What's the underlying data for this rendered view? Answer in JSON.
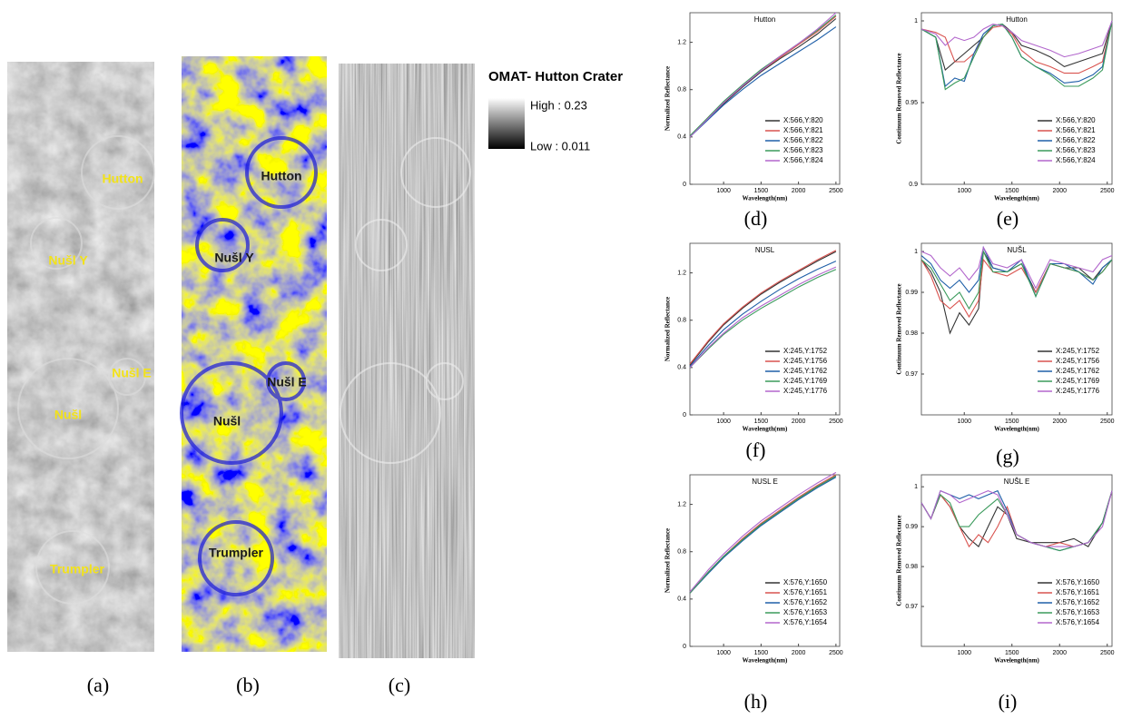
{
  "images": [
    {
      "caption": "(a)",
      "annotations": [
        "Hutton",
        "Nušl Y",
        "Nušl E",
        "Nušl",
        "Trumpler"
      ]
    },
    {
      "caption": "(b)",
      "annotations": [
        "Hutton",
        "Nušl Y",
        "Nušl E",
        "Nušl",
        "Trumpler"
      ]
    },
    {
      "caption": "(c)"
    }
  ],
  "omat_legend": {
    "title": "OMAT- Hutton Crater",
    "high": "High : 0.23",
    "low": "Low : 0.011"
  },
  "chart_data": [
    {
      "type": "line",
      "caption": "(d)",
      "title": "Hutton",
      "xlabel": "Wavelength(nm)",
      "ylabel": "Normalized Reflectance",
      "x": [
        550,
        800,
        1000,
        1250,
        1500,
        1750,
        2000,
        2250,
        2500
      ],
      "xlim": [
        550,
        2550
      ],
      "xticks": [
        1000,
        1500,
        2000,
        2500
      ],
      "ylim": [
        0,
        1.45
      ],
      "yticks": [
        0,
        0.4,
        0.8,
        1.2
      ],
      "series": [
        {
          "name": "X:566,Y:820",
          "color": "#333333",
          "values": [
            0.4,
            0.56,
            0.68,
            0.82,
            0.95,
            1.06,
            1.16,
            1.27,
            1.4
          ]
        },
        {
          "name": "X:566,Y:821",
          "color": "#d9534f",
          "values": [
            0.4,
            0.57,
            0.69,
            0.83,
            0.96,
            1.07,
            1.18,
            1.29,
            1.42
          ]
        },
        {
          "name": "X:566,Y:822",
          "color": "#1f5fa8",
          "values": [
            0.4,
            0.55,
            0.67,
            0.8,
            0.92,
            1.02,
            1.12,
            1.22,
            1.33
          ]
        },
        {
          "name": "X:566,Y:823",
          "color": "#3a9a5b",
          "values": [
            0.41,
            0.57,
            0.7,
            0.84,
            0.97,
            1.08,
            1.19,
            1.3,
            1.43
          ]
        },
        {
          "name": "X:566,Y:824",
          "color": "#b266cc",
          "values": [
            0.4,
            0.56,
            0.69,
            0.83,
            0.96,
            1.08,
            1.19,
            1.31,
            1.45
          ]
        }
      ]
    },
    {
      "type": "line",
      "caption": "(e)",
      "title": "Hutton",
      "xlabel": "Wavelength(nm)",
      "ylabel": "Continuum Removed Reflectance",
      "x": [
        550,
        700,
        800,
        900,
        1000,
        1100,
        1200,
        1300,
        1400,
        1500,
        1600,
        1750,
        1900,
        2050,
        2200,
        2350,
        2450,
        2550
      ],
      "xlim": [
        550,
        2550
      ],
      "xticks": [
        1000,
        1500,
        2000,
        2500
      ],
      "ylim": [
        0.9,
        1.005
      ],
      "yticks": [
        0.9,
        0.95,
        1
      ],
      "series": [
        {
          "name": "X:566,Y:820",
          "color": "#333333",
          "values": [
            0.995,
            0.99,
            0.97,
            0.975,
            0.98,
            0.985,
            0.99,
            0.997,
            0.998,
            0.993,
            0.985,
            0.982,
            0.978,
            0.972,
            0.975,
            0.978,
            0.98,
            1.0
          ]
        },
        {
          "name": "X:566,Y:821",
          "color": "#d9534f",
          "values": [
            0.995,
            0.993,
            0.99,
            0.975,
            0.975,
            0.98,
            0.99,
            0.996,
            0.997,
            0.992,
            0.982,
            0.975,
            0.972,
            0.968,
            0.968,
            0.972,
            0.975,
            1.0
          ]
        },
        {
          "name": "X:566,Y:822",
          "color": "#1f5fa8",
          "values": [
            0.995,
            0.99,
            0.96,
            0.965,
            0.963,
            0.98,
            0.992,
            0.997,
            0.998,
            0.99,
            0.978,
            0.972,
            0.968,
            0.962,
            0.963,
            0.967,
            0.972,
            1.0
          ]
        },
        {
          "name": "X:566,Y:823",
          "color": "#3a9a5b",
          "values": [
            0.995,
            0.99,
            0.958,
            0.962,
            0.965,
            0.978,
            0.99,
            0.997,
            0.998,
            0.99,
            0.978,
            0.972,
            0.967,
            0.96,
            0.96,
            0.965,
            0.97,
            1.0
          ]
        },
        {
          "name": "X:566,Y:824",
          "color": "#b266cc",
          "values": [
            0.995,
            0.992,
            0.985,
            0.99,
            0.988,
            0.99,
            0.995,
            0.998,
            0.997,
            0.993,
            0.988,
            0.985,
            0.982,
            0.978,
            0.98,
            0.983,
            0.985,
            1.0
          ]
        }
      ]
    },
    {
      "type": "line",
      "caption": "(f)",
      "title": "NUSL",
      "xlabel": "Wavelength(nm)",
      "ylabel": "Normalized Reflectance",
      "x": [
        550,
        800,
        1000,
        1250,
        1500,
        1750,
        2000,
        2250,
        2500
      ],
      "xlim": [
        550,
        2550
      ],
      "xticks": [
        1000,
        1500,
        2000,
        2500
      ],
      "ylim": [
        0,
        1.45
      ],
      "yticks": [
        0,
        0.4,
        0.8,
        1.2
      ],
      "series": [
        {
          "name": "X:245,Y:1752",
          "color": "#333333",
          "values": [
            0.42,
            0.62,
            0.76,
            0.9,
            1.02,
            1.12,
            1.21,
            1.3,
            1.38
          ]
        },
        {
          "name": "X:245,Y:1756",
          "color": "#d9534f",
          "values": [
            0.43,
            0.63,
            0.77,
            0.91,
            1.03,
            1.13,
            1.22,
            1.31,
            1.39
          ]
        },
        {
          "name": "X:245,Y:1762",
          "color": "#1f5fa8",
          "values": [
            0.41,
            0.59,
            0.72,
            0.85,
            0.96,
            1.06,
            1.15,
            1.23,
            1.3
          ]
        },
        {
          "name": "X:245,Y:1769",
          "color": "#3a9a5b",
          "values": [
            0.4,
            0.56,
            0.68,
            0.8,
            0.9,
            0.99,
            1.08,
            1.16,
            1.23
          ]
        },
        {
          "name": "X:245,Y:1776",
          "color": "#b266cc",
          "values": [
            0.4,
            0.57,
            0.69,
            0.82,
            0.92,
            1.01,
            1.1,
            1.18,
            1.25
          ]
        }
      ]
    },
    {
      "type": "line",
      "caption": "(g)",
      "title": "NUŠL",
      "xlabel": "Wavelength(nm)",
      "ylabel": "Continuum Removed Reflectance",
      "x": [
        550,
        650,
        750,
        850,
        950,
        1050,
        1150,
        1200,
        1300,
        1450,
        1600,
        1750,
        1900,
        2050,
        2200,
        2350,
        2450,
        2550
      ],
      "xlim": [
        550,
        2550
      ],
      "xticks": [
        1000,
        1500,
        2000,
        2500
      ],
      "ylim": [
        0.96,
        1.002
      ],
      "yticks": [
        0.97,
        0.98,
        0.99,
        1
      ],
      "series": [
        {
          "name": "X:245,Y:1752",
          "color": "#333333",
          "values": [
            0.998,
            0.995,
            0.99,
            0.98,
            0.985,
            0.982,
            0.986,
            1.0,
            0.996,
            0.995,
            0.997,
            0.99,
            0.997,
            0.996,
            0.996,
            0.993,
            0.996,
            0.998
          ]
        },
        {
          "name": "X:245,Y:1756",
          "color": "#d9534f",
          "values": [
            0.998,
            0.994,
            0.988,
            0.986,
            0.988,
            0.984,
            0.988,
            0.998,
            0.995,
            0.994,
            0.996,
            0.99,
            0.997,
            0.996,
            0.995,
            0.993,
            0.995,
            0.998
          ]
        },
        {
          "name": "X:245,Y:1762",
          "color": "#1f5fa8",
          "values": [
            0.999,
            0.997,
            0.993,
            0.991,
            0.993,
            0.99,
            0.993,
            1.001,
            0.996,
            0.995,
            0.998,
            0.989,
            0.997,
            0.997,
            0.995,
            0.992,
            0.996,
            0.998
          ]
        },
        {
          "name": "X:245,Y:1769",
          "color": "#3a9a5b",
          "values": [
            0.998,
            0.996,
            0.992,
            0.988,
            0.99,
            0.986,
            0.99,
            1.0,
            0.995,
            0.995,
            0.997,
            0.989,
            0.997,
            0.996,
            0.995,
            0.993,
            0.995,
            0.998
          ]
        },
        {
          "name": "X:245,Y:1776",
          "color": "#b266cc",
          "values": [
            1.0,
            0.999,
            0.996,
            0.994,
            0.996,
            0.993,
            0.996,
            1.001,
            0.997,
            0.996,
            0.998,
            0.991,
            0.998,
            0.997,
            0.996,
            0.995,
            0.998,
            0.999
          ]
        }
      ]
    },
    {
      "type": "line",
      "caption": "(h)",
      "title": "NUSL E",
      "xlabel": "Wavelength(nm)",
      "ylabel": "Normalized Reflectance",
      "x": [
        550,
        800,
        1000,
        1250,
        1500,
        1750,
        2000,
        2250,
        2500
      ],
      "xlim": [
        550,
        2550
      ],
      "xticks": [
        1000,
        1500,
        2000,
        2500
      ],
      "ylim": [
        0,
        1.45
      ],
      "yticks": [
        0,
        0.4,
        0.8,
        1.2
      ],
      "series": [
        {
          "name": "X:576,Y:1650",
          "color": "#333333",
          "values": [
            0.45,
            0.63,
            0.76,
            0.9,
            1.03,
            1.14,
            1.25,
            1.35,
            1.44
          ]
        },
        {
          "name": "X:576,Y:1651",
          "color": "#d9534f",
          "values": [
            0.45,
            0.63,
            0.76,
            0.91,
            1.04,
            1.15,
            1.26,
            1.36,
            1.45
          ]
        },
        {
          "name": "X:576,Y:1652",
          "color": "#1f5fa8",
          "values": [
            0.45,
            0.62,
            0.75,
            0.89,
            1.02,
            1.13,
            1.24,
            1.34,
            1.43
          ]
        },
        {
          "name": "X:576,Y:1653",
          "color": "#3a9a5b",
          "values": [
            0.45,
            0.63,
            0.76,
            0.9,
            1.03,
            1.14,
            1.25,
            1.35,
            1.44
          ]
        },
        {
          "name": "X:576,Y:1654",
          "color": "#b266cc",
          "values": [
            0.46,
            0.65,
            0.78,
            0.93,
            1.06,
            1.17,
            1.28,
            1.38,
            1.47
          ]
        }
      ]
    },
    {
      "type": "line",
      "caption": "(i)",
      "title": "NUŠL E",
      "xlabel": "Wavelength(nm)",
      "ylabel": "Continuum Removed Reflectance",
      "x": [
        550,
        650,
        750,
        850,
        950,
        1050,
        1150,
        1250,
        1350,
        1450,
        1550,
        1700,
        1850,
        2000,
        2150,
        2300,
        2450,
        2550
      ],
      "xlim": [
        550,
        2550
      ],
      "xticks": [
        1000,
        1500,
        2000,
        2500
      ],
      "ylim": [
        0.96,
        1.003
      ],
      "yticks": [
        0.97,
        0.98,
        0.99,
        1
      ],
      "series": [
        {
          "name": "X:576,Y:1650",
          "color": "#333333",
          "values": [
            0.996,
            0.992,
            0.998,
            0.995,
            0.99,
            0.987,
            0.985,
            0.99,
            0.995,
            0.993,
            0.987,
            0.986,
            0.986,
            0.986,
            0.987,
            0.985,
            0.991,
            0.999
          ]
        },
        {
          "name": "X:576,Y:1651",
          "color": "#d9534f",
          "values": [
            0.996,
            0.992,
            0.998,
            0.995,
            0.99,
            0.985,
            0.988,
            0.986,
            0.99,
            0.995,
            0.988,
            0.986,
            0.985,
            0.986,
            0.985,
            0.986,
            0.991,
            0.999
          ]
        },
        {
          "name": "X:576,Y:1652",
          "color": "#1f5fa8",
          "values": [
            0.996,
            0.992,
            0.999,
            0.998,
            0.997,
            0.998,
            0.997,
            0.998,
            0.999,
            0.994,
            0.988,
            0.986,
            0.985,
            0.984,
            0.985,
            0.986,
            0.991,
            0.999
          ]
        },
        {
          "name": "X:576,Y:1653",
          "color": "#3a9a5b",
          "values": [
            0.996,
            0.992,
            0.998,
            0.996,
            0.99,
            0.99,
            0.993,
            0.995,
            0.997,
            0.993,
            0.988,
            0.986,
            0.985,
            0.984,
            0.985,
            0.986,
            0.991,
            0.999
          ]
        },
        {
          "name": "X:576,Y:1654",
          "color": "#b266cc",
          "values": [
            0.996,
            0.992,
            0.999,
            0.998,
            0.996,
            0.997,
            0.998,
            0.999,
            0.998,
            0.993,
            0.988,
            0.986,
            0.985,
            0.985,
            0.985,
            0.986,
            0.99,
            0.999
          ]
        }
      ]
    }
  ]
}
